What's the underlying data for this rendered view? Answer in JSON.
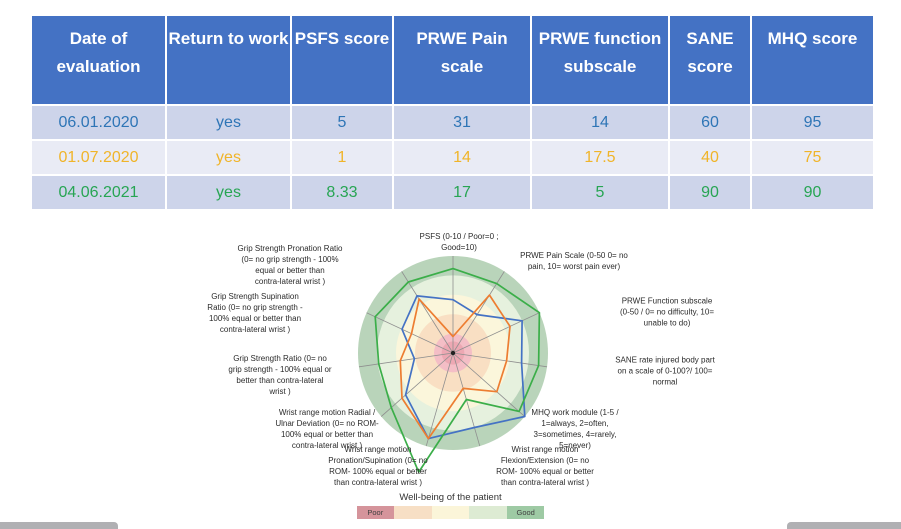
{
  "table": {
    "headers": [
      "Date of evaluation",
      "Return to work",
      "PSFS score",
      "PRWE Pain scale",
      "PRWE function subscale",
      "SANE score",
      "MHQ score"
    ],
    "header_bg": "#4472C4",
    "row_bgs": [
      "#CDD4EA",
      "#E9EBF5",
      "#CDD4EA"
    ],
    "rows": [
      {
        "color": "#2E75B6",
        "cells": [
          "06.01.2020",
          "yes",
          "5",
          "31",
          "14",
          "60",
          "95"
        ]
      },
      {
        "color": "#F0B429",
        "cells": [
          "01.07.2020",
          "yes",
          "1",
          "14",
          "17.5",
          "40",
          "75"
        ]
      },
      {
        "color": "#27A553",
        "cells": [
          "04.06.2021",
          "yes",
          "8.33",
          "17",
          "5",
          "90",
          "90"
        ]
      }
    ]
  },
  "chart_data": {
    "type": "radar",
    "axes": [
      "PSFS (0-10 / Poor=0 ;\nGood=10)",
      "PRWE Pain Scale (0-50 0= no\npain, 10= worst pain ever)",
      "PRWE Function subscale\n(0-50 / 0= no difficulty, 10=\nunable to do)",
      "SANE rate injured body part\non a scale of 0-100?/ 100=\nnormal",
      "MHQ work module (1-5 /\n1=always, 2=often,\n3=sometimes, 4=rarely,\n5=never)",
      "Wrist range motion\nFlexion/Extension (0= no\nROM- 100% equal or better\nthan contra-lateral wrist )",
      "Wrist range motion\nPronation/Supination (0= no\nROM- 100% equal or better\nthan contra-lateral wrist )",
      "Wrist range motion Radial /\nUlnar Deviation (0= no ROM-\n100% equal or better than\ncontra-lateral wrist )",
      "Grip Strength Ratio (0= no\ngrip strength - 100% equal or\nbetter than contra-lateral\nwrist )",
      "Grip Strength Supination\nRatio (0= no grip strength -\n100% equal or better than\ncontra-lateral wrist )",
      "Grip Strength Pronation Ratio\n(0= no grip strength - 100%\nequal or better than\ncontra-lateral wrist )"
    ],
    "series": [
      {
        "name": "06.01.2020",
        "color": "#4472C4",
        "values": [
          0.55,
          0.47,
          0.8,
          0.73,
          1.0,
          0.8,
          0.92,
          0.66,
          0.41,
          0.59,
          0.7
        ]
      },
      {
        "name": "01.07.2020",
        "color": "#ED7D31",
        "values": [
          0.17,
          0.71,
          0.66,
          0.57,
          0.61,
          0.38,
          0.92,
          0.71,
          0.56,
          0.48,
          0.66
        ]
      },
      {
        "name": "04.06.2021",
        "color": "#3BAE49",
        "values": [
          0.87,
          0.85,
          1.0,
          0.91,
          0.92,
          0.5,
          1.28,
          0.86,
          0.79,
          0.9,
          0.87
        ]
      }
    ],
    "scale": {
      "min": 0,
      "max": 1,
      "rings": 5
    },
    "ring_colors": [
      "#F4BEC6",
      "#F9DFC3",
      "#FBF6DB",
      "#E6F1DE",
      "#B9D4BA"
    ],
    "inner_core": {
      "color": "#EDA8B3",
      "radius_frac": 0.12
    },
    "spoke_color": "#8f8f8f",
    "center_dot_color": "#222222",
    "legend": {
      "title": "Well-being of the patient",
      "swatches": [
        {
          "label": "Poor",
          "color": "#D5949B"
        },
        {
          "label": "",
          "color": "#F7DFC5"
        },
        {
          "label": "",
          "color": "#FBF5D9"
        },
        {
          "label": "",
          "color": "#DDEBD3"
        },
        {
          "label": "Good",
          "color": "#9ECAA4"
        }
      ]
    }
  }
}
